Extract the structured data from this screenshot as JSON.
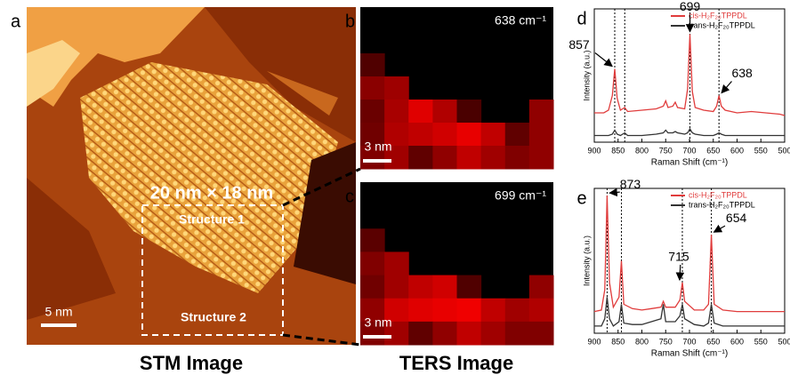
{
  "stm": {
    "label": "a",
    "title": "STM Image",
    "scale_bar": "5 nm",
    "region": "20 nm × 18 nm",
    "structures": [
      "Structure 1",
      "Structure 2"
    ]
  },
  "ters": {
    "title": "TERS Image",
    "maps": [
      {
        "label": "b",
        "wavenumber": "638 cm⁻¹",
        "scale_bar": "3 nm"
      },
      {
        "label": "c",
        "wavenumber": "699 cm⁻¹",
        "scale_bar": "3 nm"
      }
    ]
  },
  "chart_data": [
    {
      "type": "line",
      "panel": "d",
      "x_label": "Raman Shift (cm⁻¹)",
      "y_label": "Intensity (a.u.)",
      "xlim": [
        900,
        500
      ],
      "xticks": [
        900,
        850,
        800,
        750,
        700,
        650,
        600,
        550,
        500
      ],
      "ylim": [
        0,
        1
      ],
      "legend": "upper right",
      "x": [
        900,
        880,
        870,
        862,
        857,
        852,
        845,
        836,
        830,
        800,
        770,
        755,
        750,
        745,
        735,
        730,
        725,
        710,
        704,
        699,
        694,
        688,
        670,
        650,
        643,
        638,
        633,
        625,
        600,
        570,
        540,
        510,
        500
      ],
      "series": [
        {
          "name": "cis-H₂F₂₀TPPDL",
          "color": "#e03c3c",
          "values": [
            0.22,
            0.22,
            0.24,
            0.35,
            0.55,
            0.33,
            0.24,
            0.26,
            0.23,
            0.24,
            0.25,
            0.27,
            0.31,
            0.26,
            0.27,
            0.3,
            0.26,
            0.25,
            0.4,
            0.81,
            0.38,
            0.26,
            0.24,
            0.23,
            0.27,
            0.35,
            0.27,
            0.24,
            0.22,
            0.23,
            0.22,
            0.21,
            0.2
          ]
        },
        {
          "name": "trans-H₂F₂₀TPPDL",
          "color": "#333333",
          "values": [
            0.05,
            0.05,
            0.05,
            0.06,
            0.09,
            0.06,
            0.05,
            0.07,
            0.05,
            0.05,
            0.06,
            0.07,
            0.09,
            0.07,
            0.07,
            0.08,
            0.07,
            0.06,
            0.07,
            0.1,
            0.07,
            0.06,
            0.05,
            0.05,
            0.06,
            0.07,
            0.06,
            0.05,
            0.05,
            0.05,
            0.05,
            0.05,
            0.05
          ]
        }
      ],
      "dashed_lines": [
        857,
        836,
        699,
        638
      ],
      "annotations": [
        857,
        699,
        638
      ]
    },
    {
      "type": "line",
      "panel": "e",
      "x_label": "Raman Shift (cm⁻¹)",
      "y_label": "Intensity (a.u.)",
      "xlim": [
        900,
        500
      ],
      "xticks": [
        900,
        850,
        800,
        750,
        700,
        650,
        600,
        550,
        500
      ],
      "ylim": [
        0,
        1
      ],
      "legend": "upper right",
      "x": [
        900,
        885,
        878,
        873,
        868,
        860,
        848,
        843,
        838,
        820,
        800,
        780,
        760,
        755,
        750,
        730,
        720,
        715,
        710,
        690,
        670,
        660,
        654,
        648,
        630,
        600,
        570,
        540,
        500
      ],
      "series": [
        {
          "name": "cis-H₂F₂₀TPPDL",
          "color": "#e03c3c",
          "values": [
            0.15,
            0.16,
            0.3,
            0.95,
            0.35,
            0.18,
            0.25,
            0.5,
            0.2,
            0.17,
            0.16,
            0.17,
            0.18,
            0.22,
            0.18,
            0.18,
            0.23,
            0.35,
            0.22,
            0.16,
            0.16,
            0.2,
            0.68,
            0.2,
            0.16,
            0.15,
            0.15,
            0.15,
            0.15
          ]
        },
        {
          "name": "trans-H₂F₂₀TPPDL",
          "color": "#333333",
          "values": [
            0.05,
            0.05,
            0.1,
            0.25,
            0.1,
            0.05,
            0.08,
            0.2,
            0.07,
            0.06,
            0.06,
            0.08,
            0.1,
            0.2,
            0.08,
            0.08,
            0.12,
            0.2,
            0.1,
            0.06,
            0.05,
            0.07,
            0.2,
            0.07,
            0.05,
            0.05,
            0.05,
            0.05,
            0.05
          ]
        }
      ],
      "dashed_lines": [
        873,
        843,
        715,
        654
      ],
      "annotations": [
        873,
        715,
        654
      ]
    }
  ]
}
